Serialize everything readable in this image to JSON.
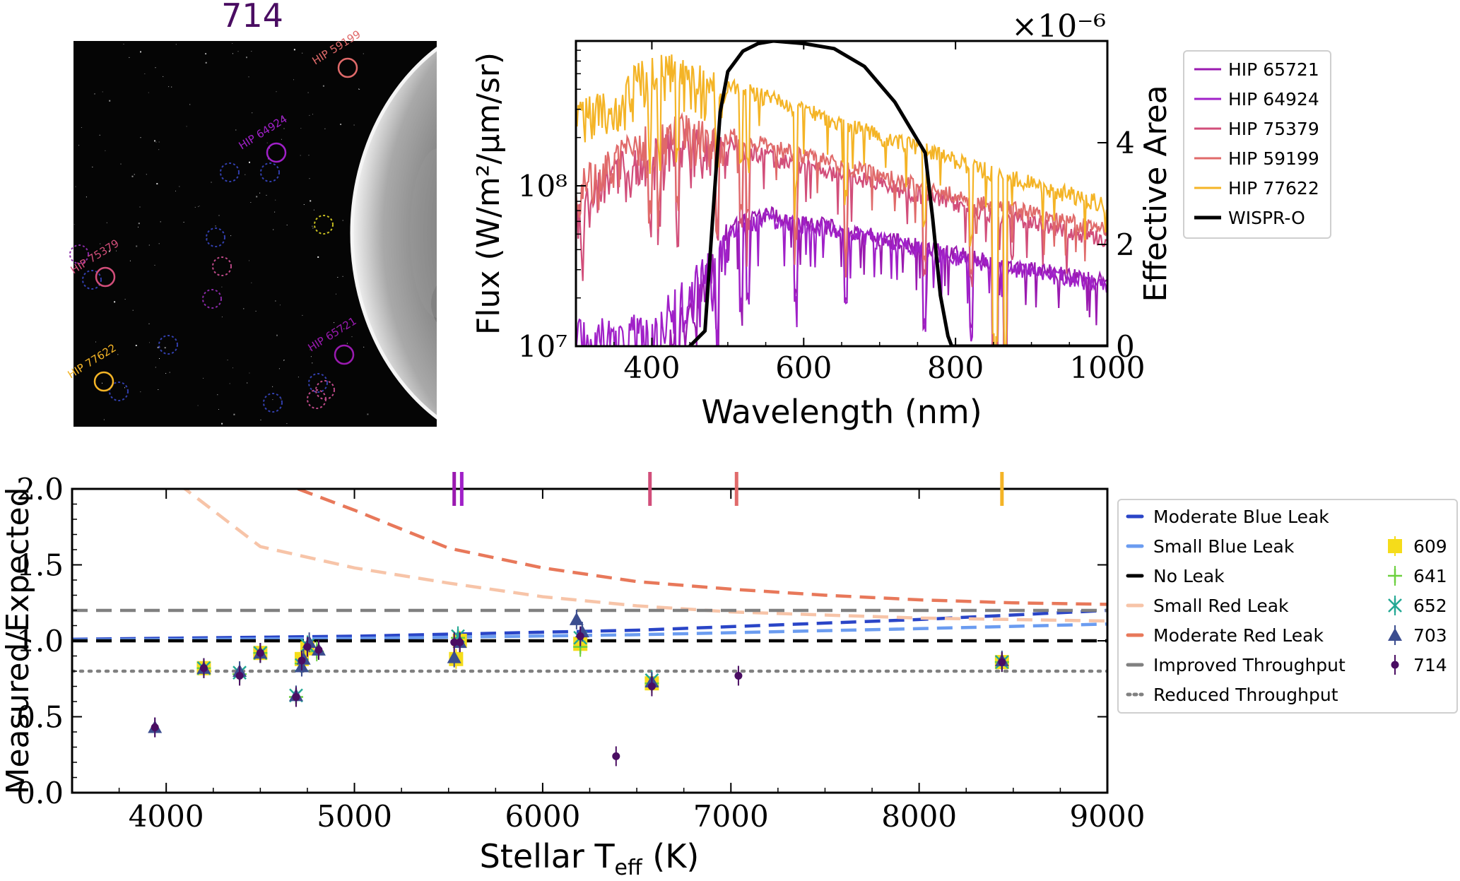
{
  "colors": {
    "hip65721": "#9a1ab0",
    "hip64924": "#a020c8",
    "hip75379": "#d24e7a",
    "hip59199": "#e06a6a",
    "hip77622": "#f4b426",
    "wispr": "#000000",
    "moderate_blue": "#2a45c7",
    "small_blue": "#6b9cf0",
    "no_leak": "#000000",
    "small_red": "#f7c4a8",
    "moderate_red": "#e8785a",
    "improved": "#808080",
    "reduced": "#808080",
    "s609": "#f5dc1a",
    "s641": "#6cd03e",
    "s652": "#23a894",
    "s703": "#3b4d8f",
    "s714": "#4a0d62"
  },
  "image_panel": {
    "title": "714",
    "stars": [
      {
        "label": "HIP 59199",
        "color_key": "hip59199"
      },
      {
        "label": "HIP 64924",
        "color_key": "hip64924"
      },
      {
        "label": "HIP 75379",
        "color_key": "hip75379"
      },
      {
        "label": "HIP 65721",
        "color_key": "hip65721"
      },
      {
        "label": "HIP 77622",
        "color_key": "hip77622"
      }
    ]
  },
  "chart_data": [
    {
      "type": "line",
      "xlabel": "Wavelength (nm)",
      "ylabel_left": "Flux (W/m²/μm/sr)",
      "ylabel_right": "Effective Area",
      "right_axis_multiplier": "×10⁻⁶",
      "xlim": [
        300,
        1000
      ],
      "ylim_left_log": [
        10000000.0,
        800000000.0
      ],
      "ylim_right": [
        0,
        6
      ],
      "x_ticks": [
        "400",
        "600",
        "800",
        "1000"
      ],
      "y_ticks_left": [
        "10⁷",
        "10⁸"
      ],
      "y_ticks_right": [
        "0",
        "2",
        "4"
      ],
      "legend": [
        "HIP 65721",
        "HIP 64924",
        "HIP 75379",
        "HIP 59199",
        "HIP 77622",
        "WISPR-O"
      ],
      "series": [
        {
          "name": "HIP 65721",
          "color_key": "hip65721",
          "start_wl": 420,
          "anchor_x": [
            420,
            500,
            550,
            650,
            800,
            900,
            1000
          ],
          "anchor_y": [
            12000000.0,
            60000000.0,
            75000000.0,
            60000000.0,
            42000000.0,
            34000000.0,
            28000000.0
          ],
          "axis": "left"
        },
        {
          "name": "HIP 64924",
          "color_key": "hip64924",
          "start_wl": 300,
          "anchor_x": [
            300,
            400,
            500,
            550,
            650,
            800,
            900,
            1000
          ],
          "anchor_y": [
            15000000.0,
            16000000.0,
            55000000.0,
            70000000.0,
            58000000.0,
            40000000.0,
            33000000.0,
            27000000.0
          ],
          "axis": "left"
        },
        {
          "name": "HIP 75379",
          "color_key": "hip75379",
          "start_wl": 300,
          "anchor_x": [
            300,
            350,
            450,
            550,
            700,
            850,
            1000
          ],
          "anchor_y": [
            80000000.0,
            160000000.0,
            250000000.0,
            170000000.0,
            115000000.0,
            75000000.0,
            52000000.0
          ],
          "axis": "left"
        },
        {
          "name": "HIP 59199",
          "color_key": "hip59199",
          "start_wl": 300,
          "anchor_x": [
            300,
            350,
            420,
            550,
            700,
            850,
            1000
          ],
          "anchor_y": [
            120000000.0,
            180000000.0,
            300000000.0,
            200000000.0,
            130000000.0,
            85000000.0,
            60000000.0
          ],
          "axis": "left"
        },
        {
          "name": "HIP 77622",
          "color_key": "hip77622",
          "start_wl": 300,
          "anchor_x": [
            300,
            350,
            400,
            450,
            550,
            700,
            850,
            1000
          ],
          "anchor_y": [
            350000000.0,
            400000000.0,
            750000000.0,
            600000000.0,
            400000000.0,
            230000000.0,
            135000000.0,
            85000000.0
          ],
          "axis": "left"
        },
        {
          "name": "WISPR-O",
          "color_key": "wispr",
          "x": [
            450,
            470,
            480,
            490,
            500,
            520,
            540,
            560,
            600,
            640,
            680,
            720,
            740,
            760,
            770,
            780,
            790,
            795,
            800,
            1000
          ],
          "y": [
            0.0,
            0.3,
            2.5,
            4.6,
            5.4,
            5.8,
            5.95,
            6.0,
            5.95,
            5.85,
            5.5,
            4.8,
            4.3,
            3.8,
            2.5,
            1.0,
            0.2,
            0.0,
            0.0,
            0.0
          ],
          "axis": "right"
        }
      ]
    },
    {
      "type": "scatter",
      "xlabel": "Stellar T",
      "xlabel_sub": "eff",
      "xlabel_unit": " (K)",
      "ylabel": "Measured/Expected",
      "xlim": [
        3500,
        9000
      ],
      "ylim": [
        0.0,
        2.0
      ],
      "x_ticks": [
        "4000",
        "5000",
        "6000",
        "7000",
        "8000",
        "9000"
      ],
      "y_ticks": [
        "0.0",
        "0.5",
        "1.0",
        "1.5",
        "2.0"
      ],
      "top_ticks": [
        {
          "x": 5530,
          "color_key": "hip65721"
        },
        {
          "x": 5570,
          "color_key": "hip64924"
        },
        {
          "x": 6570,
          "color_key": "hip75379"
        },
        {
          "x": 7030,
          "color_key": "hip59199"
        },
        {
          "x": 8440,
          "color_key": "hip77622"
        }
      ],
      "model_lines": [
        {
          "name": "Moderate Blue Leak",
          "color_key": "moderate_blue",
          "style": "dash",
          "x": [
            3500,
            5000,
            6500,
            8000,
            9000
          ],
          "y": [
            1.01,
            1.03,
            1.07,
            1.14,
            1.2
          ]
        },
        {
          "name": "Small Blue Leak",
          "color_key": "small_blue",
          "style": "dash",
          "x": [
            3500,
            5000,
            6500,
            8000,
            9000
          ],
          "y": [
            1.005,
            1.015,
            1.04,
            1.08,
            1.11
          ]
        },
        {
          "name": "No Leak",
          "color_key": "no_leak",
          "style": "dash",
          "x": [
            3500,
            9000
          ],
          "y": [
            1.0,
            1.0
          ]
        },
        {
          "name": "Small Red Leak",
          "color_key": "small_red",
          "style": "dash",
          "x": [
            4100,
            4500,
            5000,
            5500,
            6000,
            6500,
            7000,
            7500,
            8000,
            8500,
            9000
          ],
          "y": [
            2.0,
            1.62,
            1.48,
            1.38,
            1.29,
            1.23,
            1.19,
            1.17,
            1.15,
            1.14,
            1.13
          ],
          "x_extra": [
            3500,
            4000
          ],
          "y_extra": [
            2.4,
            2.05
          ]
        },
        {
          "name": "Moderate Red Leak",
          "color_key": "moderate_red",
          "style": "dash",
          "x": [
            4700,
            5000,
            5500,
            6000,
            6500,
            7000,
            7500,
            8000,
            8500,
            9000
          ],
          "y": [
            2.0,
            1.86,
            1.61,
            1.48,
            1.39,
            1.34,
            1.3,
            1.27,
            1.25,
            1.24
          ]
        },
        {
          "name": "Improved Throughput",
          "color_key": "improved",
          "style": "dash",
          "x": [
            3500,
            9000
          ],
          "y": [
            1.2,
            1.2
          ]
        },
        {
          "name": "Reduced Throughput",
          "color_key": "reduced",
          "style": "dot",
          "x": [
            3500,
            9000
          ],
          "y": [
            0.8,
            0.8
          ]
        }
      ],
      "series": [
        {
          "name": "609",
          "color_key": "s609",
          "marker": "square",
          "x": [
            4200,
            4500,
            4720,
            4750,
            5540,
            5560,
            6200,
            6580,
            8440
          ],
          "y": [
            0.82,
            0.92,
            0.88,
            0.95,
            0.88,
            1.0,
            0.98,
            0.72,
            0.86
          ]
        },
        {
          "name": "641",
          "color_key": "s641",
          "marker": "plus",
          "x": [
            4200,
            4390,
            4500,
            4690,
            4720,
            4800,
            5550,
            6200,
            6580,
            8440
          ],
          "y": [
            0.82,
            0.78,
            0.92,
            0.63,
            0.85,
            0.93,
            1.02,
            0.96,
            0.72,
            0.86
          ]
        },
        {
          "name": "652",
          "color_key": "s652",
          "marker": "x",
          "x": [
            4200,
            4390,
            4500,
            4690,
            4720,
            4750,
            5550,
            6200,
            6580,
            8440
          ],
          "y": [
            0.82,
            0.79,
            0.92,
            0.64,
            0.84,
            0.97,
            1.03,
            1.02,
            0.74,
            0.86
          ]
        },
        {
          "name": "703",
          "color_key": "s703",
          "marker": "triangle",
          "x": [
            3940,
            4200,
            4390,
            4500,
            4690,
            4720,
            4730,
            4760,
            4810,
            5530,
            5560,
            6180,
            6210,
            6580,
            8440
          ],
          "y": [
            0.43,
            0.82,
            0.8,
            0.92,
            0.64,
            0.83,
            0.88,
            0.99,
            0.94,
            0.89,
            0.99,
            1.14,
            1.06,
            0.73,
            0.87
          ]
        },
        {
          "name": "714",
          "color_key": "s714",
          "marker": "circle",
          "x": [
            3940,
            4200,
            4390,
            4500,
            4690,
            4720,
            4750,
            4810,
            5530,
            5560,
            6200,
            6390,
            6580,
            7040,
            8440
          ],
          "y": [
            0.43,
            0.82,
            0.77,
            0.92,
            0.63,
            0.87,
            0.96,
            0.94,
            0.99,
            0.99,
            1.03,
            0.24,
            0.7,
            0.77,
            0.86
          ]
        }
      ],
      "legend_models": [
        "Moderate Blue Leak",
        "Small Blue Leak",
        "No Leak",
        "Small Red Leak",
        "Moderate Red Leak",
        "Improved Throughput",
        "Reduced Throughput"
      ],
      "legend_series": [
        "609",
        "641",
        "652",
        "703",
        "714"
      ]
    }
  ]
}
